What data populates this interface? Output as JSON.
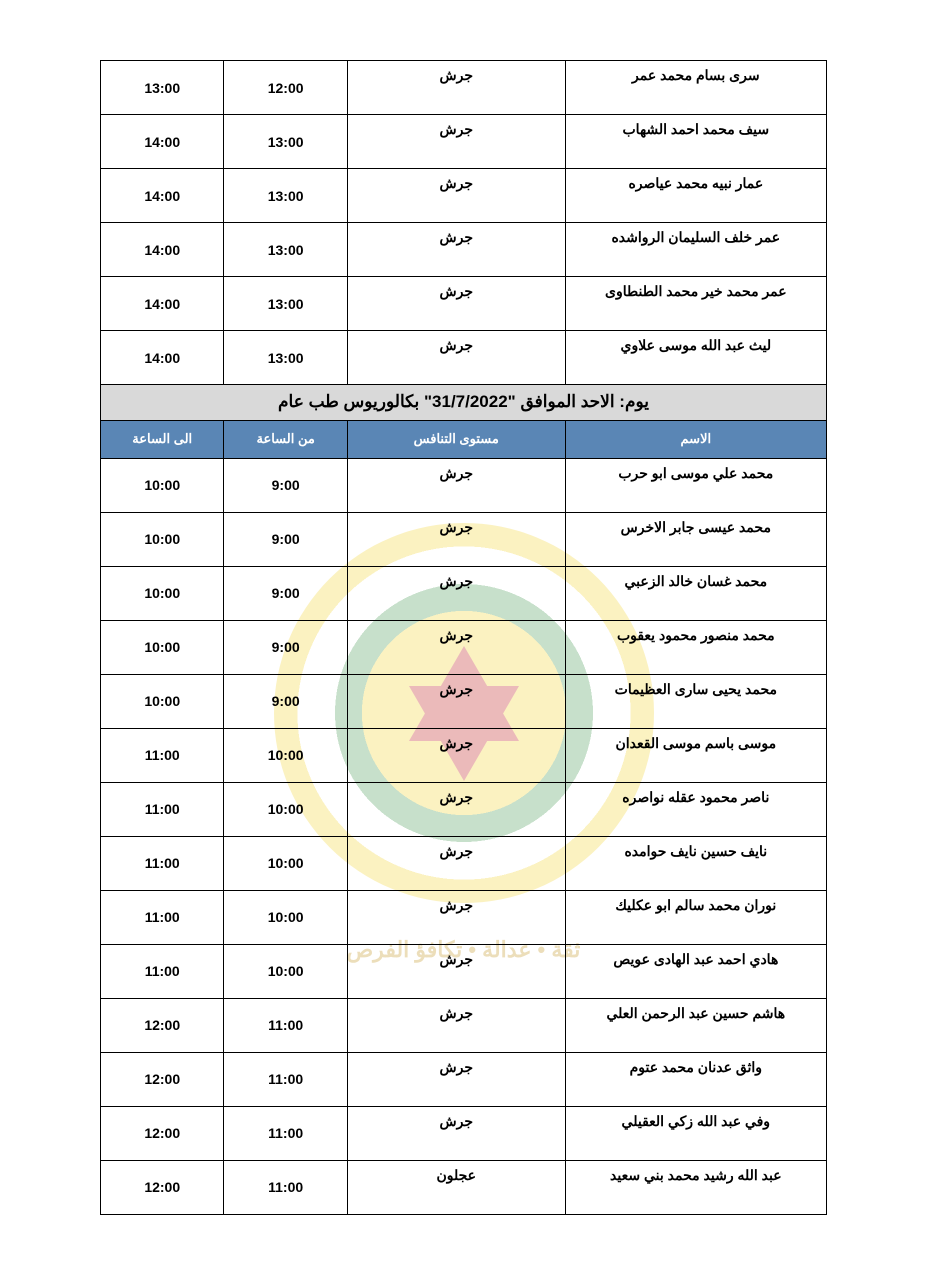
{
  "colors": {
    "header_bg": "#5a86b5",
    "header_text": "#ffffff",
    "section_bg": "#d9d9d9",
    "border": "#000000"
  },
  "table1": {
    "rows": [
      {
        "name": "سرى بسام محمد عمر",
        "level": "جرش",
        "from": "12:00",
        "to": "13:00"
      },
      {
        "name": "سيف محمد احمد الشهاب",
        "level": "جرش",
        "from": "13:00",
        "to": "14:00"
      },
      {
        "name": "عمار نبيه محمد عياصره",
        "level": "جرش",
        "from": "13:00",
        "to": "14:00"
      },
      {
        "name": "عمر خلف السليمان الرواشده",
        "level": "جرش",
        "from": "13:00",
        "to": "14:00"
      },
      {
        "name": "عمر محمد خير محمد الطنطاوى",
        "level": "جرش",
        "from": "13:00",
        "to": "14:00"
      },
      {
        "name": "ليث عبد الله موسى علاوي",
        "level": "جرش",
        "from": "13:00",
        "to": "14:00"
      }
    ]
  },
  "section2": {
    "title_prefix": "يوم: الاحد  الموافق ",
    "title_date": "\"31/7/2022\"",
    "title_suffix": " بكالوريوس طب عام",
    "headers": {
      "name": "الاسم",
      "level": "مستوى التنافس",
      "from": "من الساعة",
      "to": "الى الساعة"
    },
    "rows": [
      {
        "name": "محمد علي موسى ابو حرب",
        "level": "جرش",
        "from": "9:00",
        "to": "10:00"
      },
      {
        "name": "محمد عيسى جابر الاخرس",
        "level": "جرش",
        "from": "9:00",
        "to": "10:00"
      },
      {
        "name": "محمد غسان خالد الزعبي",
        "level": "جرش",
        "from": "9:00",
        "to": "10:00"
      },
      {
        "name": "محمد منصور محمود يعقوب",
        "level": "جرش",
        "from": "9:00",
        "to": "10:00"
      },
      {
        "name": "محمد يحيى سارى العظيمات",
        "level": "جرش",
        "from": "9:00",
        "to": "10:00"
      },
      {
        "name": "موسى باسم موسى القعدان",
        "level": "جرش",
        "from": "10:00",
        "to": "11:00"
      },
      {
        "name": "ناصر محمود عقله نواصره",
        "level": "جرش",
        "from": "10:00",
        "to": "11:00"
      },
      {
        "name": "نايف حسين نايف حوامده",
        "level": "جرش",
        "from": "10:00",
        "to": "11:00"
      },
      {
        "name": "نوران محمد سالم ابو عكليك",
        "level": "جرش",
        "from": "10:00",
        "to": "11:00"
      },
      {
        "name": "هادي احمد عبد الهادى عويص",
        "level": "جرش",
        "from": "10:00",
        "to": "11:00"
      },
      {
        "name": "هاشم حسين عبد الرحمن العلي",
        "level": "جرش",
        "from": "11:00",
        "to": "12:00"
      },
      {
        "name": "واثق عدنان محمد عتوم",
        "level": "جرش",
        "from": "11:00",
        "to": "12:00"
      },
      {
        "name": "وفي عبد الله زكي العقيلي",
        "level": "جرش",
        "from": "11:00",
        "to": "12:00"
      },
      {
        "name": "عبد الله رشيد محمد بني سعيد",
        "level": "عجلون",
        "from": "11:00",
        "to": "12:00"
      }
    ]
  },
  "watermark_text": "ثقة • عدالة • تكافؤ الفرص"
}
